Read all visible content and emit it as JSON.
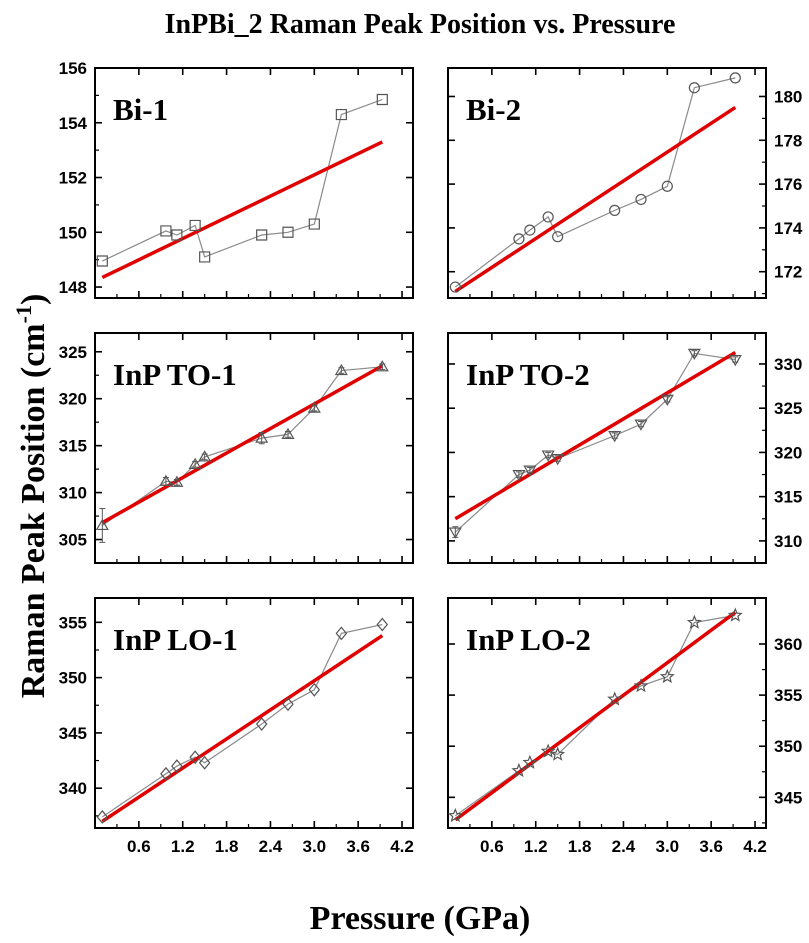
{
  "title": "InPBi_2 Raman Peak Position vs. Pressure",
  "xlabel": "Pressure (GPa)",
  "ylabel": "Raman Peak Position (cm",
  "ylabel_sup": "-1",
  "ylabel_end": ")",
  "fit_color": "#e00000",
  "marker_color": "#555555",
  "x_ticks": [
    "0.6",
    "1.2",
    "1.8",
    "2.4",
    "3.0",
    "3.6",
    "4.2"
  ],
  "chart_data": [
    {
      "type": "scatter",
      "name": "Bi-1",
      "label": "Bi-1",
      "marker": "square",
      "xlim": [
        0.0,
        4.35
      ],
      "ylim": [
        147.6,
        156
      ],
      "yticks": [
        148,
        150,
        152,
        154,
        156
      ],
      "ytick_side": "left",
      "x": [
        0.1,
        0.97,
        1.12,
        1.37,
        1.5,
        2.28,
        2.64,
        3.0,
        3.37,
        3.93
      ],
      "y": [
        148.95,
        150.05,
        149.9,
        150.25,
        149.1,
        149.9,
        150.0,
        150.3,
        154.3,
        154.85
      ],
      "fit": {
        "x": [
          0.1,
          3.93
        ],
        "y": [
          148.35,
          153.3
        ]
      }
    },
    {
      "type": "scatter",
      "name": "Bi-2",
      "label": "Bi-2",
      "marker": "circle",
      "xlim": [
        0.0,
        4.35
      ],
      "ylim": [
        170.8,
        181.3
      ],
      "yticks": [
        172,
        174,
        176,
        178,
        180
      ],
      "ytick_side": "right",
      "x": [
        0.1,
        0.97,
        1.12,
        1.37,
        1.5,
        2.28,
        2.64,
        3.0,
        3.37,
        3.93
      ],
      "y": [
        171.3,
        173.5,
        173.9,
        174.5,
        173.6,
        174.8,
        175.3,
        175.9,
        180.4,
        180.85
      ],
      "fit": {
        "x": [
          0.1,
          3.93
        ],
        "y": [
          171.1,
          179.5
        ]
      }
    },
    {
      "type": "scatter",
      "name": "InP TO-1",
      "label": "InP TO-1",
      "marker": "triangle-up",
      "xlim": [
        0.0,
        4.35
      ],
      "ylim": [
        302.5,
        327
      ],
      "yticks": [
        305,
        310,
        315,
        320,
        325
      ],
      "ytick_side": "left",
      "x": [
        0.1,
        0.97,
        1.12,
        1.37,
        1.5,
        2.28,
        2.64,
        3.0,
        3.37,
        3.93
      ],
      "y": [
        306.5,
        311.2,
        311.1,
        313.0,
        313.8,
        315.8,
        316.2,
        319.0,
        323.0,
        323.4
      ],
      "yerr": [
        1.8,
        0.4,
        0.3,
        0.3,
        0.3,
        0.6,
        0.3,
        0.3,
        0.3,
        0.3
      ],
      "fit": {
        "x": [
          0.1,
          3.93
        ],
        "y": [
          306.8,
          323.5
        ]
      }
    },
    {
      "type": "scatter",
      "name": "InP TO-2",
      "label": "InP TO-2",
      "marker": "triangle-down",
      "xlim": [
        0.0,
        4.35
      ],
      "ylim": [
        307.5,
        333.5
      ],
      "yticks": [
        310,
        315,
        320,
        325,
        330
      ],
      "ytick_side": "right",
      "x": [
        0.1,
        0.97,
        1.12,
        1.37,
        1.5,
        2.28,
        2.64,
        3.0,
        3.37,
        3.93
      ],
      "y": [
        311.0,
        317.5,
        318.0,
        319.7,
        319.3,
        321.9,
        323.2,
        326.0,
        331.2,
        330.5
      ],
      "yerr": [
        0.6,
        0.3,
        0.3,
        0.3,
        0.3,
        0.3,
        0.3,
        0.3,
        0.3,
        0.3
      ],
      "fit": {
        "x": [
          0.1,
          3.93
        ],
        "y": [
          312.5,
          331.3
        ]
      }
    },
    {
      "type": "scatter",
      "name": "InP LO-1",
      "label": "InP LO-1",
      "marker": "diamond",
      "xlim": [
        0.0,
        4.35
      ],
      "ylim": [
        336.4,
        357.2
      ],
      "yticks": [
        340,
        345,
        350,
        355
      ],
      "ytick_side": "left",
      "x": [
        0.1,
        0.97,
        1.12,
        1.37,
        1.5,
        2.28,
        2.64,
        3.0,
        3.37,
        3.93
      ],
      "y": [
        337.4,
        341.3,
        342.0,
        342.8,
        342.3,
        345.8,
        347.6,
        348.9,
        354.0,
        354.8
      ],
      "fit": {
        "x": [
          0.1,
          3.93
        ],
        "y": [
          337.0,
          353.8
        ]
      }
    },
    {
      "type": "scatter",
      "name": "InP LO-2",
      "label": "InP LO-2",
      "marker": "star",
      "xlim": [
        0.0,
        4.35
      ],
      "ylim": [
        342.0,
        364.5
      ],
      "yticks": [
        345,
        350,
        355,
        360
      ],
      "ytick_side": "right",
      "x": [
        0.1,
        0.97,
        1.12,
        1.37,
        1.5,
        2.28,
        2.64,
        3.0,
        3.37,
        3.93
      ],
      "y": [
        343.2,
        347.6,
        348.4,
        349.5,
        349.2,
        354.6,
        355.9,
        356.8,
        362.1,
        362.8
      ],
      "fit": {
        "x": [
          0.1,
          3.93
        ],
        "y": [
          342.8,
          363.1
        ]
      }
    }
  ]
}
